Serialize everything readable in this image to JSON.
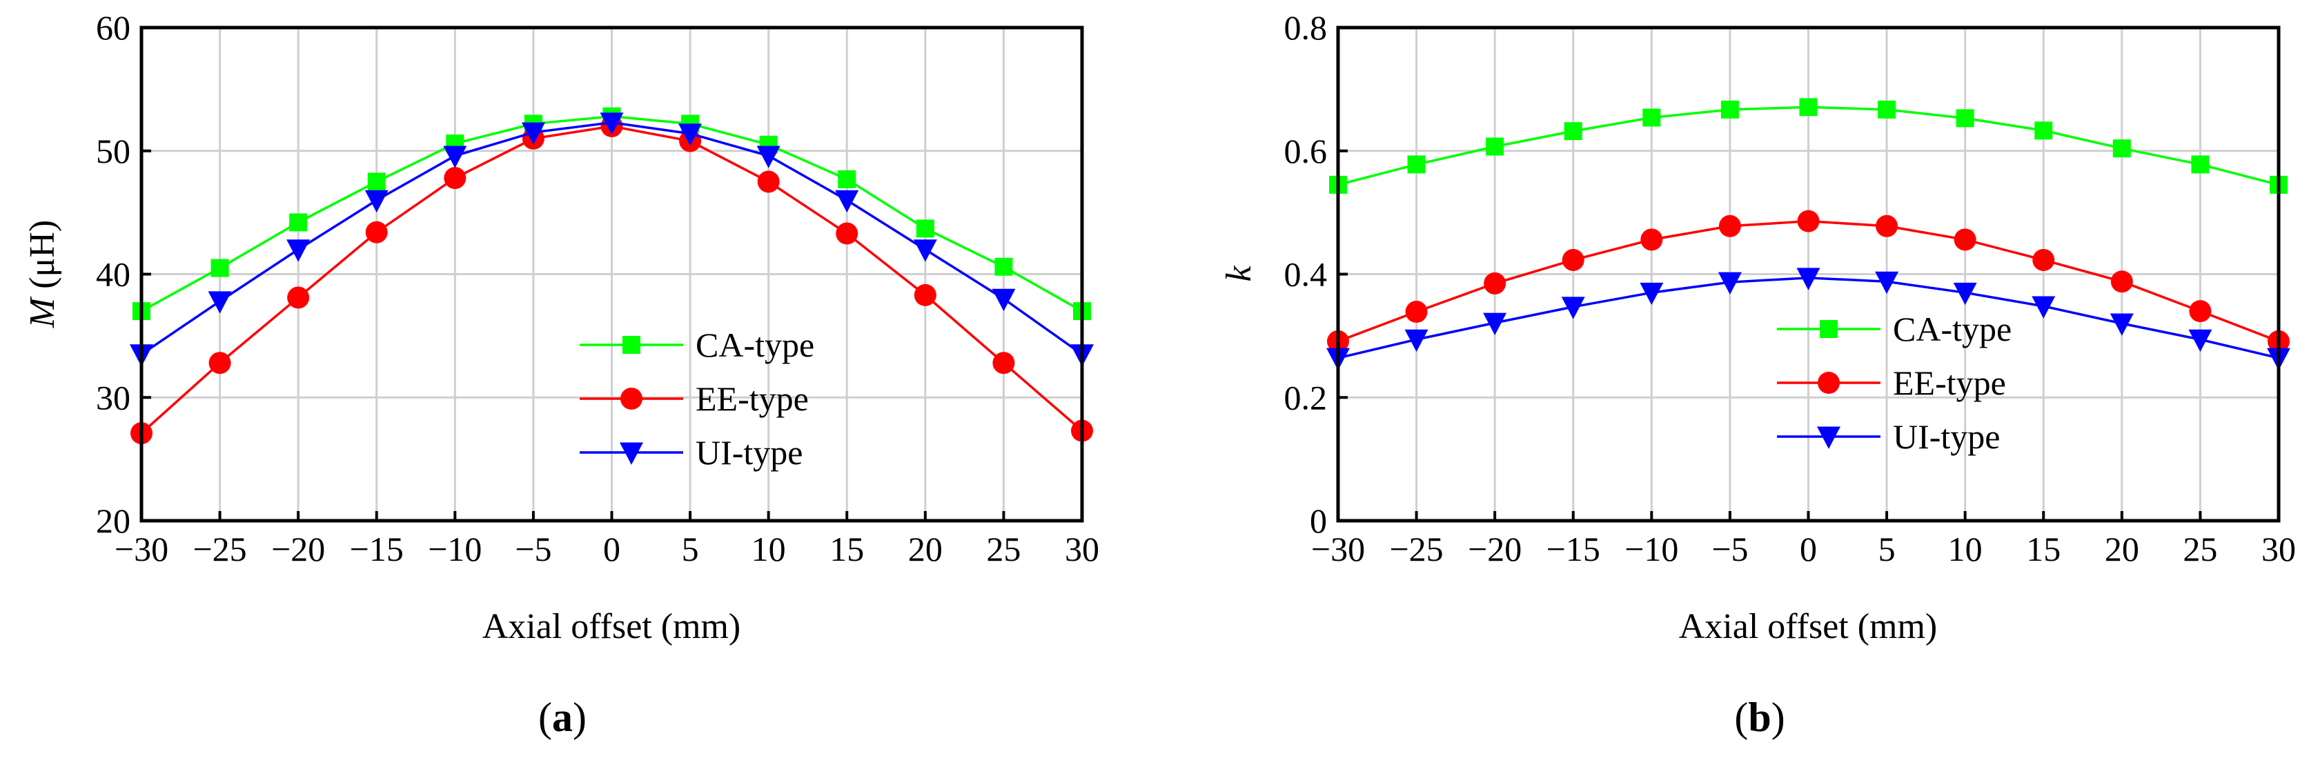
{
  "chart_data": [
    {
      "type": "line",
      "panel": "a",
      "panel_label": {
        "open": "(",
        "letter": "a",
        "close": ")"
      },
      "xlabel": "Axial offset (mm)",
      "ylabel_symbol": "M",
      "ylabel_unit": " (μH)",
      "x": [
        -30,
        -25,
        -20,
        -15,
        -10,
        -5,
        0,
        5,
        10,
        15,
        20,
        25,
        30
      ],
      "xticks": [
        -30,
        -25,
        -20,
        -15,
        -10,
        -5,
        0,
        5,
        10,
        15,
        20,
        25,
        30
      ],
      "xtick_labels": [
        "−30",
        "−25",
        "−20",
        "−15",
        "−10",
        "−5",
        "0",
        "5",
        "10",
        "15",
        "20",
        "25",
        "30"
      ],
      "yticks": [
        20,
        30,
        40,
        50,
        60
      ],
      "ytick_labels": [
        "20",
        "30",
        "40",
        "50",
        "60"
      ],
      "xlim": [
        -30,
        30
      ],
      "ylim": [
        20,
        60
      ],
      "grid": true,
      "legend_position": "lower-right",
      "series": [
        {
          "name": "CA-type",
          "color": "#00ff00",
          "marker": "square",
          "values": [
            37.0,
            40.5,
            44.2,
            47.5,
            50.6,
            52.2,
            52.8,
            52.2,
            50.5,
            47.7,
            43.7,
            40.6,
            37.0
          ]
        },
        {
          "name": "EE-type",
          "color": "#ff0000",
          "marker": "circle",
          "values": [
            27.1,
            32.8,
            38.1,
            43.4,
            47.8,
            51.0,
            52.0,
            50.8,
            47.5,
            43.3,
            38.3,
            32.8,
            27.3
          ]
        },
        {
          "name": "UI-type",
          "color": "#0000ff",
          "marker": "triangle-down",
          "values": [
            33.5,
            37.8,
            42.0,
            46.0,
            49.6,
            51.5,
            52.3,
            51.4,
            49.6,
            46.0,
            42.0,
            38.0,
            33.5
          ]
        }
      ]
    },
    {
      "type": "line",
      "panel": "b",
      "panel_label": {
        "open": "(",
        "letter": "b",
        "close": ")"
      },
      "xlabel": "Axial offset (mm)",
      "ylabel_symbol": "k",
      "ylabel_unit": "",
      "x": [
        -30,
        -25,
        -20,
        -15,
        -10,
        -5,
        0,
        5,
        10,
        15,
        20,
        25,
        30
      ],
      "xticks": [
        -30,
        -25,
        -20,
        -15,
        -10,
        -5,
        0,
        5,
        10,
        15,
        20,
        25,
        30
      ],
      "xtick_labels": [
        "−30",
        "−25",
        "−20",
        "−15",
        "−10",
        "−5",
        "0",
        "5",
        "10",
        "15",
        "20",
        "25",
        "30"
      ],
      "yticks": [
        0,
        0.2,
        0.4,
        0.6,
        0.8
      ],
      "ytick_labels": [
        "0",
        "0.2",
        "0.4",
        "0.6",
        "0.8"
      ],
      "xlim": [
        -30,
        30
      ],
      "ylim": [
        0,
        0.8
      ],
      "grid": true,
      "legend_position": "lower-right",
      "series": [
        {
          "name": "CA-type",
          "color": "#00ff00",
          "marker": "square",
          "values": [
            0.545,
            0.578,
            0.607,
            0.632,
            0.654,
            0.667,
            0.671,
            0.667,
            0.653,
            0.633,
            0.604,
            0.578,
            0.545
          ]
        },
        {
          "name": "EE-type",
          "color": "#ff0000",
          "marker": "circle",
          "values": [
            0.291,
            0.339,
            0.385,
            0.423,
            0.456,
            0.478,
            0.486,
            0.478,
            0.456,
            0.423,
            0.388,
            0.34,
            0.291
          ]
        },
        {
          "name": "UI-type",
          "color": "#0000ff",
          "marker": "triangle-down",
          "values": [
            0.264,
            0.294,
            0.321,
            0.347,
            0.37,
            0.387,
            0.394,
            0.388,
            0.37,
            0.348,
            0.32,
            0.294,
            0.264
          ]
        }
      ]
    }
  ]
}
